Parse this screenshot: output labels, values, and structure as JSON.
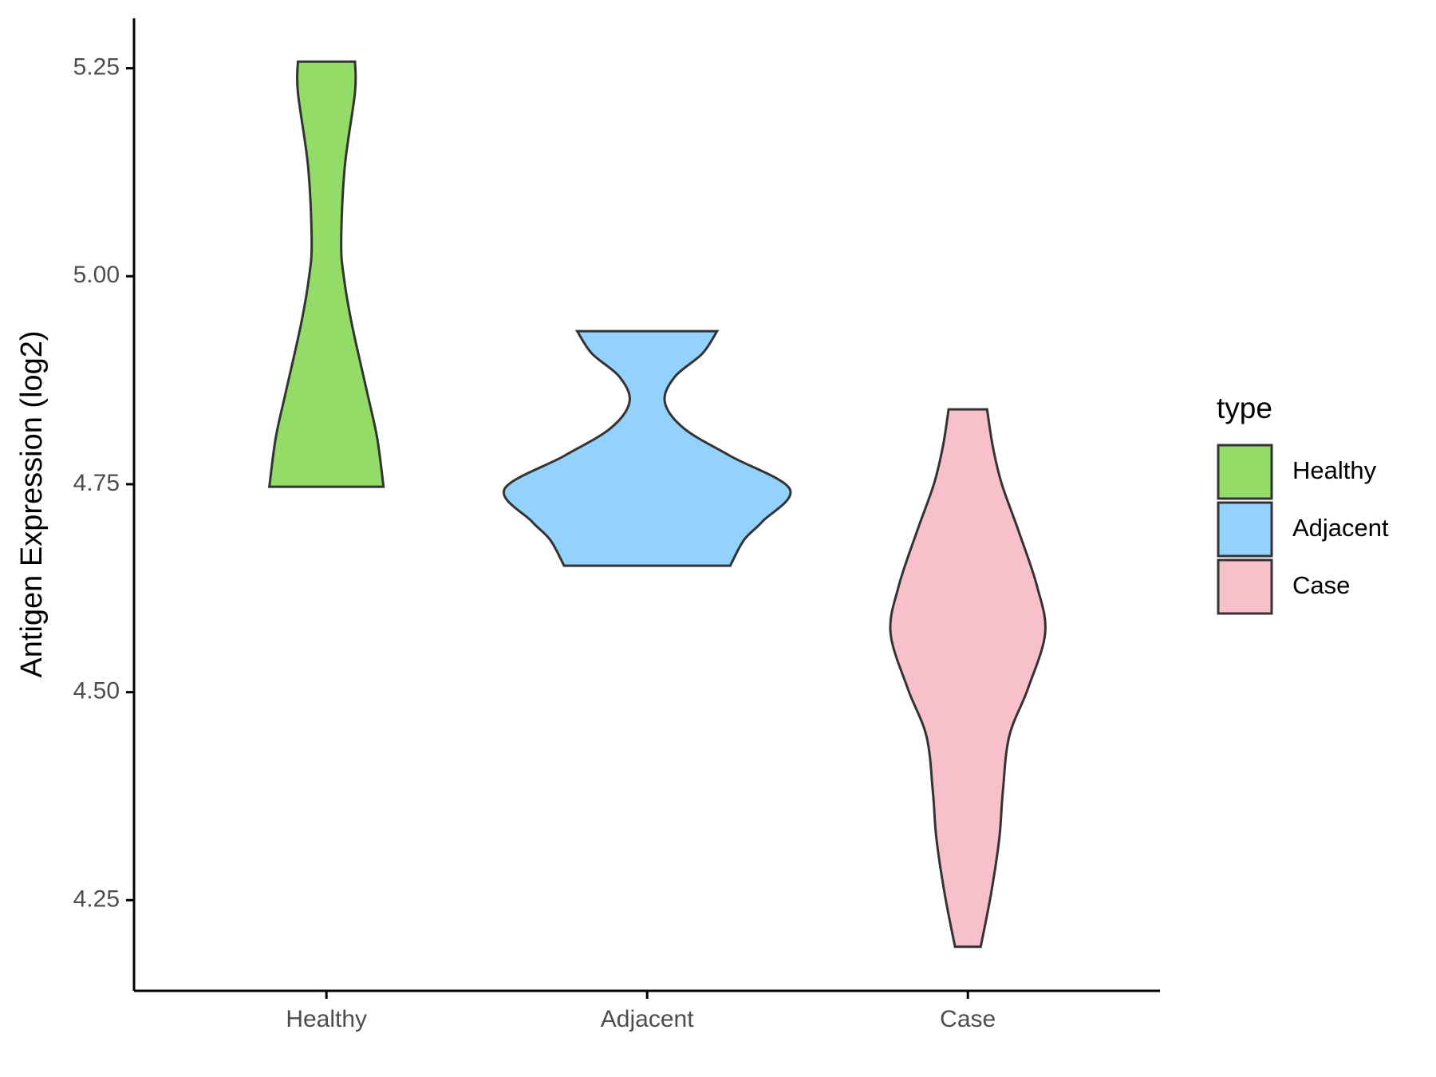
{
  "chart_data": {
    "type": "violin",
    "y_label": "Antigen Expression (log2)",
    "categories": [
      "Healthy",
      "Adjacent",
      "Case"
    ],
    "legend_title": "type",
    "legend": "right",
    "ylim": [
      4.141,
      5.31
    ],
    "yticks": [
      {
        "value": 4.25,
        "label": "4.25"
      },
      {
        "value": 4.5,
        "label": "4.50"
      },
      {
        "value": 4.75,
        "label": "4.75"
      },
      {
        "value": 5,
        "label": "5.00"
      },
      {
        "value": 5.25,
        "label": "5.25"
      }
    ],
    "series": [
      {
        "name": "Healthy",
        "color": "#93dc68",
        "y": [
          5.258,
          5.221,
          5.131,
          5.041,
          4.997,
          4.941,
          4.862,
          4.806,
          4.747
        ],
        "width": [
          0.089,
          0.089,
          0.057,
          0.046,
          0.055,
          0.08,
          0.126,
          0.158,
          0.178
        ]
      },
      {
        "name": "Adjacent",
        "color": "#93d2fc",
        "y": [
          4.934,
          4.907,
          4.879,
          4.849,
          4.817,
          4.784,
          4.744,
          4.705,
          4.683,
          4.652
        ],
        "width": [
          0.218,
          0.172,
          0.086,
          0.055,
          0.115,
          0.259,
          0.445,
          0.359,
          0.302,
          0.259
        ]
      },
      {
        "name": "Case",
        "color": "#f7c0cb",
        "y": [
          4.84,
          4.795,
          4.75,
          4.694,
          4.627,
          4.571,
          4.504,
          4.447,
          4.38,
          4.324,
          4.257,
          4.194
        ],
        "width": [
          0.06,
          0.078,
          0.106,
          0.158,
          0.216,
          0.241,
          0.187,
          0.129,
          0.109,
          0.098,
          0.072,
          0.04
        ]
      }
    ]
  }
}
